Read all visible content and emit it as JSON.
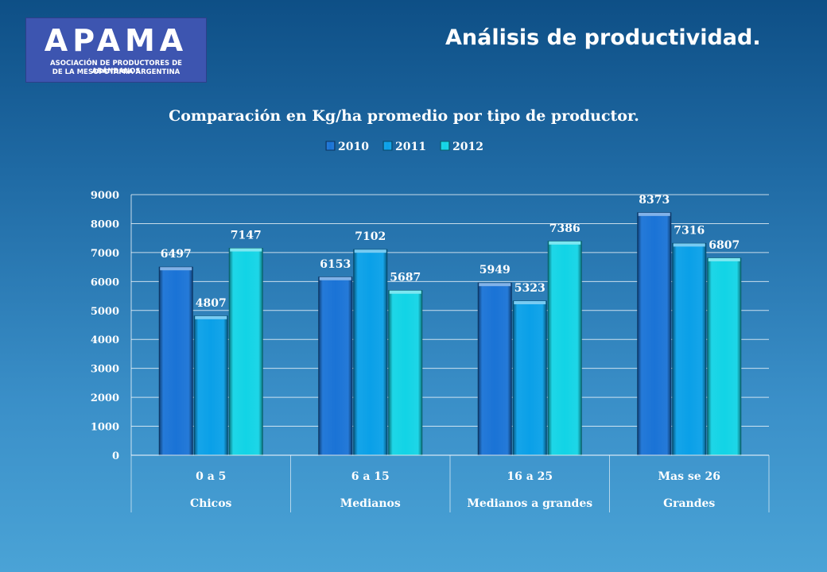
{
  "header": {
    "logo_word": "APAMA",
    "logo_line1": "ASOCIACIÓN DE PRODUCTORES DE ARÁNDANOS",
    "logo_line2": "DE LA MESOPOTAMIA ARGENTINA",
    "title": "Análisis de productividad."
  },
  "chart_data": {
    "type": "bar",
    "title": "Comparación en Kg/ha promedio por tipo de productor.",
    "categories": [
      "0 a 5",
      "6 a 15",
      "16 a 25",
      "Mas se 26"
    ],
    "category_groups": [
      "Chicos",
      "Medianos",
      "Medianos a grandes",
      "Grandes"
    ],
    "series": [
      {
        "name": "2010",
        "values": [
          6497,
          6153,
          5949,
          8373
        ],
        "color": "#1a73d6"
      },
      {
        "name": "2011",
        "values": [
          4807,
          7102,
          5323,
          7316
        ],
        "color": "#0aa0e8"
      },
      {
        "name": "2012",
        "values": [
          7147,
          5687,
          7386,
          6807
        ],
        "color": "#12d4e6"
      }
    ],
    "ylim": [
      0,
      9000
    ],
    "yticks": [
      "0",
      "1000",
      "2000",
      "3000",
      "4000",
      "5000",
      "6000",
      "7000",
      "8000",
      "9000"
    ],
    "grid": true,
    "legend": "top"
  }
}
